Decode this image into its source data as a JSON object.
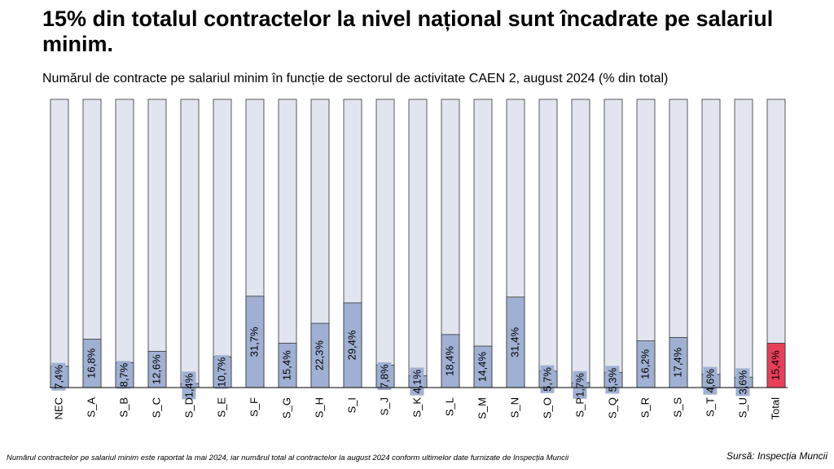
{
  "chart_data": {
    "type": "bar",
    "title": "15% din totalul contractelor la nivel național sunt încadrate pe salariul minim.",
    "subtitle": "Numărul de contracte pe salariul minim în funcție de sectorul de activitate CAEN 2, august 2024 (% din total)",
    "footnote": "Numărul contractelor pe salariul minim este raportat la mai 2024, iar numărul total al contractelor la august 2024 conform ultimelor date furnizate de Inspecția Muncii",
    "source": "Sursă: Inspecția Muncii",
    "categories": [
      "NEC",
      "S_A",
      "S_B",
      "S_C",
      "S_D",
      "S_E",
      "S_F",
      "S_G",
      "S_H",
      "S_I",
      "S_J",
      "S_K",
      "S_L",
      "S_M",
      "S_N",
      "S_O",
      "S_P",
      "S_Q",
      "S_R",
      "S_S",
      "S_T",
      "S_U",
      "Total"
    ],
    "values": [
      7.4,
      16.8,
      8.7,
      12.6,
      1.4,
      10.7,
      31.7,
      15.4,
      22.3,
      29.4,
      7.8,
      4.1,
      18.4,
      14.4,
      31.4,
      5.7,
      1.7,
      5.3,
      16.2,
      17.4,
      4.6,
      3.6,
      15.4
    ],
    "value_labels": [
      "7,4%",
      "16,8%",
      "8,7%",
      "12,6%",
      "1,4%",
      "10,7%",
      "31,7%",
      "15,4%",
      "22,3%",
      "29,4%",
      "7,8%",
      "4,1%",
      "18,4%",
      "14,4%",
      "31,4%",
      "5,7%",
      "1,7%",
      "5,3%",
      "16,2%",
      "17,4%",
      "4,6%",
      "3,6%",
      "15,4%"
    ],
    "colors": [
      "#9fb0d2",
      "#9fb0d2",
      "#9fb0d2",
      "#9fb0d2",
      "#9fb0d2",
      "#9fb0d2",
      "#9fb0d2",
      "#9fb0d2",
      "#9fb0d2",
      "#9fb0d2",
      "#9fb0d2",
      "#9fb0d2",
      "#9fb0d2",
      "#9fb0d2",
      "#9fb0d2",
      "#9fb0d2",
      "#9fb0d2",
      "#9fb0d2",
      "#9fb0d2",
      "#9fb0d2",
      "#9fb0d2",
      "#9fb0d2",
      "#e8405a"
    ],
    "ylim": [
      0,
      100
    ]
  }
}
